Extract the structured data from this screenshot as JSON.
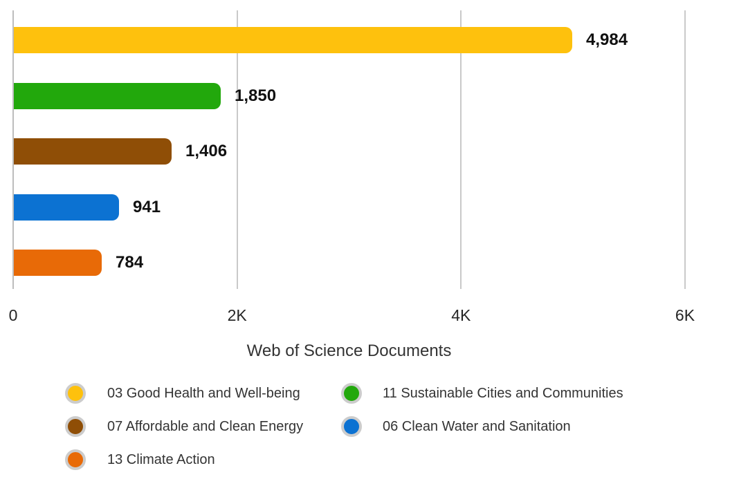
{
  "chart_data": {
    "type": "bar",
    "orientation": "horizontal",
    "title": "",
    "xlabel": "Web of Science Documents",
    "ylabel": "",
    "categories": [
      "03 Good Health and Well-being",
      "11 Sustainable Cities and Communities",
      "07 Affordable and Clean Energy",
      "06 Clean Water and Sanitation",
      "13 Climate Action"
    ],
    "values": [
      4984,
      1850,
      1406,
      941,
      784
    ],
    "value_labels": [
      "4,984",
      "1,850",
      "1,406",
      "941",
      "784"
    ],
    "bar_colors": [
      "#FEC10D",
      "#22A80C",
      "#8F4E06",
      "#0C72D2",
      "#E86A07"
    ],
    "xlim": [
      0,
      6000
    ],
    "xticks": {
      "values": [
        0,
        2000,
        4000,
        6000
      ],
      "labels": [
        "0",
        "2K",
        "4K",
        "6K"
      ]
    },
    "grid": "vertical-only",
    "legend": {
      "position": "bottom",
      "columns": 2,
      "entries": [
        {
          "label": "03 Good Health and Well-being",
          "color": "#FEC10D"
        },
        {
          "label": "11 Sustainable Cities and Communities",
          "color": "#22A80C"
        },
        {
          "label": "07 Affordable and Clean Energy",
          "color": "#8F4E06"
        },
        {
          "label": "06 Clean Water and Sanitation",
          "color": "#0C72D2"
        },
        {
          "label": "13 Climate Action",
          "color": "#E86A07"
        }
      ]
    },
    "styles": {
      "gridline_color": "#C9C9C9",
      "zero_line_color": "#BDBDBD",
      "value_text_color": "#111111",
      "tick_text_color": "#262626",
      "axis_title_color": "#333333",
      "legend_text_color": "#333333",
      "legend_ring_color": "#CCCCCC",
      "background": "#FFFFFF"
    }
  }
}
